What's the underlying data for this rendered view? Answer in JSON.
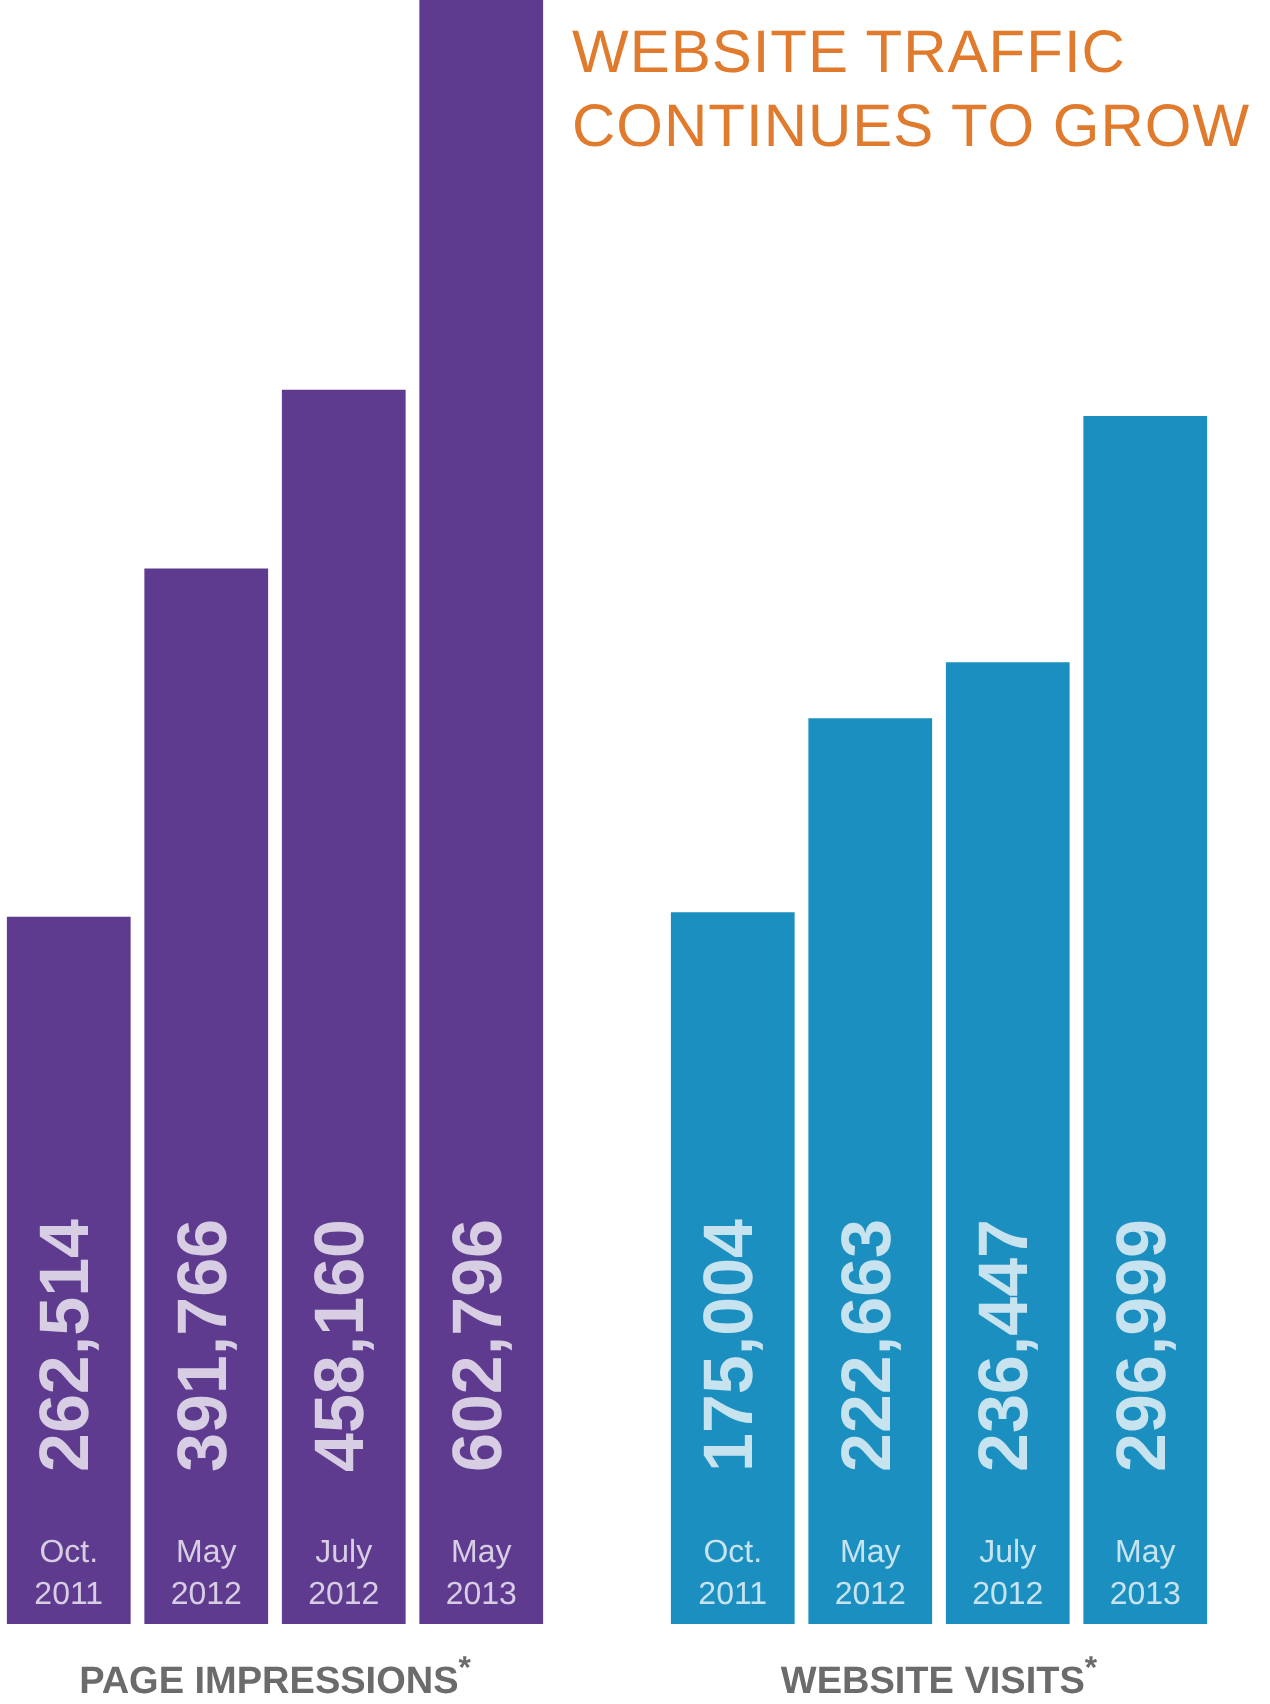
{
  "chart_data": [
    {
      "type": "bar",
      "xlabel": "PAGE IMPRESSIONS$^{*}$",
      "categories": [
        "Oct. 2011",
        "May 2012",
        "July 2012",
        "May 2013"
      ],
      "values": [
        262514,
        391766,
        458160,
        602796
      ],
      "value_labels": [
        "262,514",
        "391,766",
        "458,160",
        "602,796"
      ],
      "color": "#5e3b8f",
      "tick_labels": "x"
    },
    {
      "type": "bar",
      "title": "WEBSITE TRAFFIC CONTINUES TO GROW",
      "xlabel": "WEBSITE VISITS$^{*}$",
      "categories": [
        "Oct. 2011",
        "May 2012",
        "July 2012",
        "May 2013"
      ],
      "values": [
        175004,
        222663,
        236447,
        296999
      ],
      "value_labels": [
        "175,004",
        "222,663",
        "236,447",
        "296,999"
      ],
      "color": "#1b8fc0",
      "tick_labels": "x"
    }
  ]
}
